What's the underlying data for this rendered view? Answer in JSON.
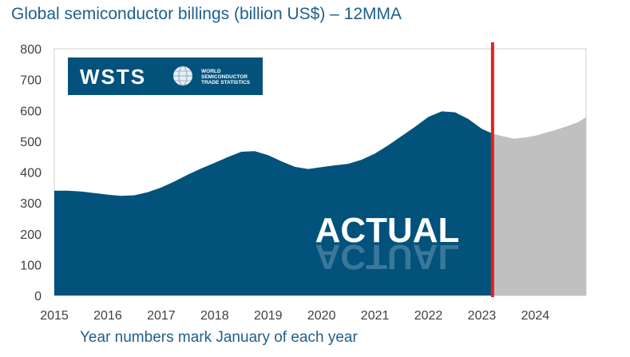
{
  "chart_data": {
    "type": "area",
    "title": "Global semiconductor billings (billion US$) – 12MMA",
    "note": "Year numbers mark January of each year",
    "annotation": "ACTUAL",
    "xlim": [
      2015,
      2024.95
    ],
    "ylim": [
      0,
      800
    ],
    "y_ticks": [
      0,
      100,
      200,
      300,
      400,
      500,
      600,
      700,
      800
    ],
    "x_ticks": [
      2015,
      2016,
      2017,
      2018,
      2019,
      2020,
      2021,
      2022,
      2023,
      2024
    ],
    "actual_end": 2023.2,
    "marker_x": 2023.2,
    "colors": {
      "actual": "#02527c",
      "forecast": "#c0c0c0",
      "marker": "#e2231a",
      "title": "#1f5f8b"
    },
    "grid": false,
    "series": [
      {
        "values_x": [
          2015.0,
          2015.25,
          2015.5,
          2015.75,
          2016.0,
          2016.25,
          2016.5,
          2016.75,
          2017.0,
          2017.25,
          2017.5,
          2017.75,
          2018.0,
          2018.25,
          2018.5,
          2018.75,
          2019.0,
          2019.25,
          2019.5,
          2019.75,
          2020.0,
          2020.25,
          2020.5,
          2020.75,
          2021.0,
          2021.25,
          2021.5,
          2021.75,
          2022.0,
          2022.25,
          2022.5,
          2022.75,
          2023.0,
          2023.2
        ],
        "values_y": [
          340,
          340,
          337,
          332,
          327,
          323,
          325,
          335,
          350,
          370,
          392,
          412,
          430,
          449,
          466,
          468,
          455,
          435,
          417,
          410,
          416,
          422,
          427,
          440,
          460,
          487,
          517,
          547,
          579,
          597,
          594,
          572,
          540,
          525
        ]
      },
      {
        "values_x": [
          2023.2,
          2023.4,
          2023.6,
          2023.8,
          2024.0,
          2024.2,
          2024.4,
          2024.6,
          2024.8,
          2024.95
        ],
        "values_y": [
          525,
          516,
          508,
          512,
          518,
          528,
          538,
          549,
          562,
          578
        ]
      }
    ],
    "logo": {
      "big": "WSTS",
      "small": [
        "WORLD",
        "SEMICONDUCTOR",
        "TRADE STATISTICS"
      ]
    }
  }
}
